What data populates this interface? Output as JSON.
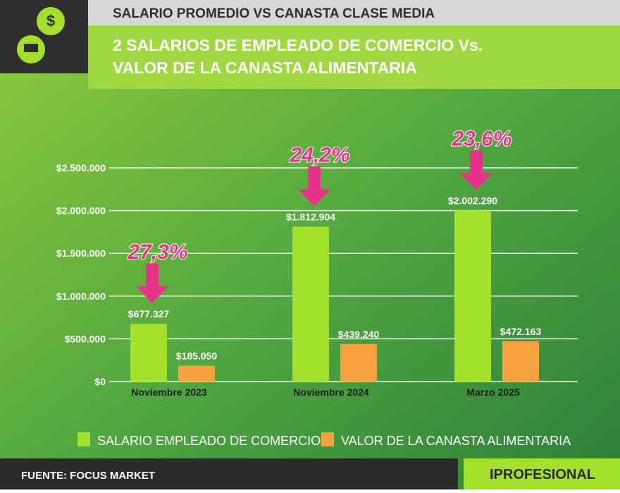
{
  "header": {
    "subtitle": "SALARIO PROMEDIO VS CANASTA CLASE MEDIA"
  },
  "chart_data": {
    "type": "bar",
    "title": [
      "2 SALARIOS DE EMPLEADO DE COMERCIO Vs.",
      "VALOR DE LA CANASTA ALIMENTARIA"
    ],
    "categories": [
      "Noviembre 2023",
      "Noviembre 2024",
      "Marzo 2025"
    ],
    "series": [
      {
        "name": "SALARIO EMPLEADO DE COMERCIO",
        "color": "#a3e02c",
        "values": [
          677327,
          1812904,
          2002290
        ],
        "value_labels": [
          "$677.327",
          "$1.812.904",
          "$2.002.290"
        ]
      },
      {
        "name": "VALOR DE LA CANASTA ALIMENTARIA",
        "color": "#f7a13f",
        "values": [
          185050,
          439240,
          472163
        ],
        "value_labels": [
          "$185.050",
          "$439.240",
          "$472.163"
        ]
      }
    ],
    "annotations": [
      "27,3%",
      "24,2%",
      "23,6%"
    ],
    "ylim": [
      0,
      2500000
    ],
    "yticks": [
      {
        "value": 0,
        "label": "$0"
      },
      {
        "value": 500000,
        "label": "$500.000"
      },
      {
        "value": 1000000,
        "label": "$1.000.000"
      },
      {
        "value": 1500000,
        "label": "$1.500.000"
      },
      {
        "value": 2000000,
        "label": "$2.000.000"
      },
      {
        "value": 2500000,
        "label": "$2.500.000"
      }
    ],
    "grid": true
  },
  "footer": {
    "source": "FUENTE: FOCUS MARKET",
    "brand": "IPROFESIONAL"
  }
}
